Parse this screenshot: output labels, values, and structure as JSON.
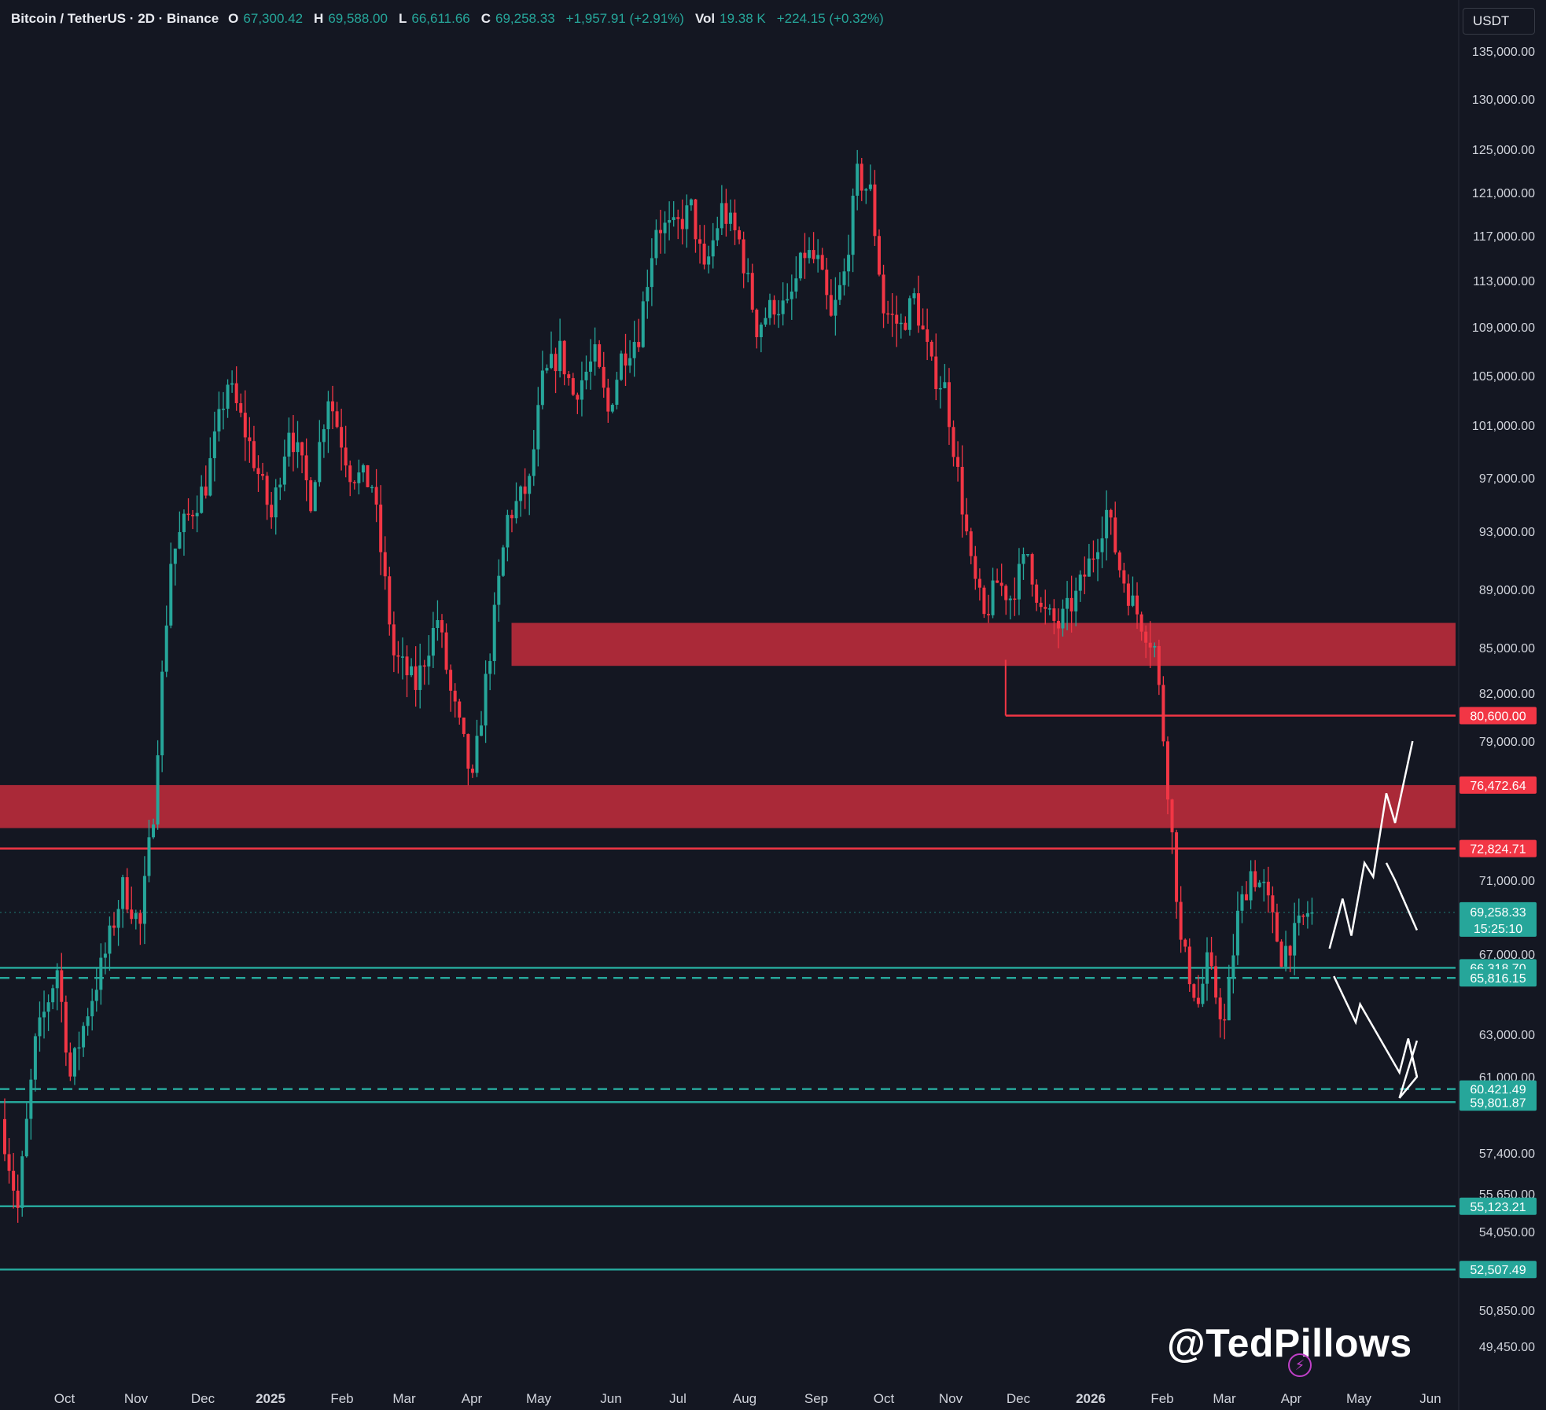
{
  "header": {
    "symbol": "Bitcoin / TetherUS · 2D · Binance",
    "open_key": "O",
    "open": "67,300.42",
    "high_key": "H",
    "high": "69,588.00",
    "low_key": "L",
    "low": "66,611.66",
    "close_key": "C",
    "close": "69,258.33",
    "change": "+1,957.91 (+2.91%)",
    "vol_key": "Vol",
    "vol": "19.38 K",
    "vol_change": "+224.15 (+0.32%)",
    "currency": "USDT"
  },
  "watermark": "@TedPillows",
  "colors": {
    "up": "#26a69a",
    "down": "#f23645",
    "zone": "#b22a3a",
    "bg": "#141722"
  },
  "chart_data": {
    "type": "candlestick",
    "timeframe": "2D",
    "x_ticks": [
      "Oct",
      "Nov",
      "Dec",
      "2025",
      "Feb",
      "Mar",
      "Apr",
      "May",
      "Jun",
      "Jul",
      "Aug",
      "Sep",
      "Oct",
      "Nov",
      "Dec",
      "2026",
      "Feb",
      "Mar",
      "Apr",
      "May",
      "Jun"
    ],
    "y_ticks": [
      "135,000.00",
      "130,000.00",
      "125,000.00",
      "121,000.00",
      "117,000.00",
      "113,000.00",
      "109,000.00",
      "105,000.00",
      "101,000.00",
      "97,000.00",
      "93,000.00",
      "89,000.00",
      "85,000.00",
      "82,000.00",
      "79,000.00",
      "71,000.00",
      "67,000.00",
      "63,000.00",
      "61,000.00",
      "57,400.00",
      "55,650.00",
      "54,050.00",
      "50,850.00",
      "49,450.00"
    ],
    "price_path": [
      [
        0,
        59000
      ],
      [
        4,
        55000
      ],
      [
        8,
        62500
      ],
      [
        13,
        66300
      ],
      [
        16,
        61000
      ],
      [
        20,
        64200
      ],
      [
        24,
        67000
      ],
      [
        28,
        70600
      ],
      [
        32,
        68500
      ],
      [
        35,
        75000
      ],
      [
        39,
        91000
      ],
      [
        42,
        93500
      ],
      [
        47,
        96500
      ],
      [
        52,
        104500
      ],
      [
        57,
        99500
      ],
      [
        62,
        94000
      ],
      [
        66,
        101000
      ],
      [
        71,
        95500
      ],
      [
        75,
        103500
      ],
      [
        80,
        97500
      ],
      [
        85,
        96500
      ],
      [
        90,
        84500
      ],
      [
        95,
        82500
      ],
      [
        100,
        87000
      ],
      [
        103,
        82000
      ],
      [
        108,
        76500
      ],
      [
        112,
        84800
      ],
      [
        116,
        94000
      ],
      [
        121,
        96500
      ],
      [
        124,
        104500
      ],
      [
        128,
        107000
      ],
      [
        131,
        103500
      ],
      [
        136,
        106500
      ],
      [
        139,
        102000
      ],
      [
        142,
        106500
      ],
      [
        146,
        108500
      ],
      [
        150,
        118000
      ],
      [
        154,
        117500
      ],
      [
        158,
        119500
      ],
      [
        161,
        113500
      ],
      [
        165,
        119500
      ],
      [
        169,
        116500
      ],
      [
        173,
        109000
      ],
      [
        177,
        111000
      ],
      [
        180,
        110500
      ],
      [
        184,
        115500
      ],
      [
        187,
        114500
      ],
      [
        190,
        109500
      ],
      [
        193,
        113500
      ],
      [
        196,
        122500
      ],
      [
        199,
        121000
      ],
      [
        202,
        110500
      ],
      [
        206,
        109000
      ],
      [
        209,
        111500
      ],
      [
        213,
        105500
      ],
      [
        216,
        104000
      ],
      [
        220,
        95000
      ],
      [
        222,
        90500
      ],
      [
        225,
        87000
      ],
      [
        228,
        89500
      ],
      [
        231,
        88500
      ],
      [
        235,
        91500
      ],
      [
        238,
        87500
      ],
      [
        242,
        86500
      ],
      [
        246,
        88500
      ],
      [
        250,
        91500
      ],
      [
        253,
        94500
      ],
      [
        256,
        90500
      ],
      [
        259,
        88000
      ],
      [
        261,
        86800
      ],
      [
        264,
        85000
      ],
      [
        267,
        76500
      ],
      [
        270,
        67500
      ],
      [
        274,
        64500
      ],
      [
        276,
        66500
      ],
      [
        280,
        63500
      ],
      [
        283,
        69000
      ],
      [
        286,
        71500
      ],
      [
        289,
        70500
      ],
      [
        293,
        67000
      ],
      [
        296,
        68000
      ],
      [
        299,
        69258
      ]
    ],
    "zones": [
      {
        "from": 83800,
        "to": 86700,
        "x_start": 117
      },
      {
        "from": 74000,
        "to": 76472.64,
        "x_start": 0
      }
    ],
    "lines": [
      {
        "value": 80600,
        "label": "80,600.00",
        "style": "solid",
        "color": "#f23645",
        "x_start": 230
      },
      {
        "value": 76472.64,
        "label": "76,472.64",
        "style": "none",
        "color": "#f23645",
        "x_start": 0
      },
      {
        "value": 72824.71,
        "label": "72,824.71",
        "style": "solid",
        "color": "#f23645",
        "x_start": 0
      },
      {
        "value": 66318.7,
        "label": "66,318.70",
        "style": "solid",
        "color": "#26a69a",
        "x_start": 0
      },
      {
        "value": 65816.15,
        "label": "65,816.15",
        "style": "dashed",
        "color": "#26a69a",
        "x_start": 0
      },
      {
        "value": 60421.49,
        "label": "60,421.49",
        "style": "dashed",
        "color": "#26a69a",
        "x_start": 0
      },
      {
        "value": 59801.87,
        "label": "59,801.87",
        "style": "solid",
        "color": "#26a69a",
        "x_start": 0
      },
      {
        "value": 55123.21,
        "label": "55,123.21",
        "style": "solid",
        "color": "#26a69a",
        "x_start": 0
      },
      {
        "value": 52507.49,
        "label": "52,507.49",
        "style": "solid",
        "color": "#26a69a",
        "x_start": 0
      }
    ],
    "last_price": {
      "value": 69258.33,
      "label": "69,258.33",
      "countdown": "15:25:10"
    },
    "projections": [
      {
        "name": "bullish-path",
        "points": [
          [
            303,
            67300
          ],
          [
            306,
            70000
          ],
          [
            308,
            68000
          ],
          [
            311,
            72000
          ],
          [
            313,
            71200
          ],
          [
            316,
            76000
          ],
          [
            318,
            74300
          ],
          [
            322,
            79000
          ]
        ]
      },
      {
        "name": "ranging-path",
        "points": [
          [
            316,
            72000
          ],
          [
            318,
            71000
          ],
          [
            323,
            68300
          ]
        ]
      },
      {
        "name": "bearish-path",
        "points": [
          [
            304,
            65900
          ],
          [
            309,
            63600
          ],
          [
            310,
            64500
          ],
          [
            319,
            61200
          ],
          [
            321,
            62800
          ],
          [
            323,
            61000
          ],
          [
            319,
            60000
          ],
          [
            323,
            62700
          ]
        ]
      }
    ]
  }
}
